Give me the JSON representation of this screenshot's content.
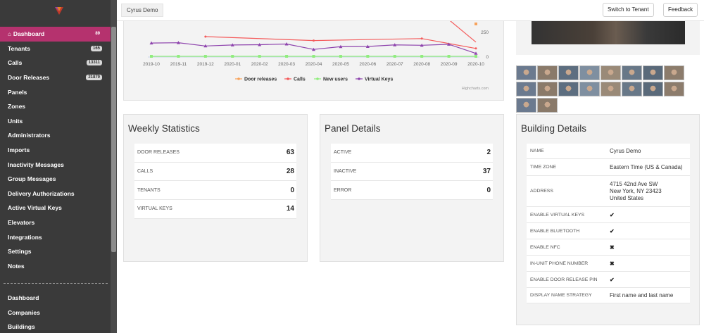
{
  "sidebar": {
    "items": [
      {
        "label": "Dashboard",
        "badge": "89",
        "active": true
      },
      {
        "label": "Tenants",
        "badge": "165"
      },
      {
        "label": "Calls",
        "badge": "13311"
      },
      {
        "label": "Door Releases",
        "badge": "21879"
      },
      {
        "label": "Panels",
        "badge": ""
      },
      {
        "label": "Zones",
        "badge": ""
      },
      {
        "label": "Units",
        "badge": ""
      },
      {
        "label": "Administrators",
        "badge": ""
      },
      {
        "label": "Imports",
        "badge": ""
      },
      {
        "label": "Inactivity Messages",
        "badge": ""
      },
      {
        "label": "Group Messages",
        "badge": ""
      },
      {
        "label": "Delivery Authorizations",
        "badge": ""
      },
      {
        "label": "Active Virtual Keys",
        "badge": ""
      },
      {
        "label": "Elevators",
        "badge": ""
      },
      {
        "label": "Integrations",
        "badge": ""
      },
      {
        "label": "Settings",
        "badge": ""
      },
      {
        "label": "Notes",
        "badge": ""
      }
    ],
    "items2": [
      {
        "label": "Dashboard"
      },
      {
        "label": "Companies"
      },
      {
        "label": "Buildings"
      }
    ]
  },
  "topbar": {
    "tenant": "Cyrus Demo",
    "switch_label": "Switch to Tenant",
    "feedback_label": "Feedback"
  },
  "chart_data": {
    "type": "line",
    "x": [
      "2019-10",
      "2019-11",
      "2019-12",
      "2020-01",
      "2020-02",
      "2020-03",
      "2020-04",
      "2020-05",
      "2020-06",
      "2020-07",
      "2020-08",
      "2020-09",
      "2020-10"
    ],
    "y_ticks": [
      "250",
      "0"
    ],
    "series": [
      {
        "name": "Door releases",
        "color": "#f7a35c",
        "values": [
          null,
          null,
          null,
          null,
          null,
          null,
          null,
          null,
          null,
          null,
          null,
          null,
          null
        ]
      },
      {
        "name": "Calls",
        "color": "#f45b5b",
        "values": [
          null,
          null,
          200,
          null,
          null,
          null,
          160,
          null,
          null,
          null,
          180,
          null,
          80
        ]
      },
      {
        "name": "New users",
        "color": "#90ed7d",
        "values": [
          0,
          0,
          0,
          0,
          0,
          0,
          0,
          0,
          0,
          0,
          0,
          0,
          0
        ]
      },
      {
        "name": "Virtual Keys",
        "color": "#8e44ad",
        "values": [
          135,
          138,
          105,
          115,
          118,
          125,
          70,
          98,
          100,
          116,
          112,
          122,
          30
        ]
      }
    ],
    "credit": "Highcharts.com"
  },
  "weekly": {
    "title": "Weekly Statistics",
    "rows": [
      {
        "label": "DOOR RELEASES",
        "value": "63"
      },
      {
        "label": "CALLS",
        "value": "28"
      },
      {
        "label": "TENANTS",
        "value": "0"
      },
      {
        "label": "VIRTUAL KEYS",
        "value": "14"
      }
    ]
  },
  "panel_details": {
    "title": "Panel Details",
    "rows": [
      {
        "label": "ACTIVE",
        "value": "2"
      },
      {
        "label": "INACTIVE",
        "value": "37"
      },
      {
        "label": "ERROR",
        "value": "0"
      }
    ]
  },
  "building": {
    "title": "Building Details",
    "rows": [
      {
        "label": "NAME",
        "value": "Cyrus Demo"
      },
      {
        "label": "TIME ZONE",
        "value": "Eastern Time (US & Canada)"
      },
      {
        "label": "ADDRESS",
        "value": "4715 42nd Ave SW",
        "value2": "New York, NY 23423",
        "value3": "United States"
      },
      {
        "label": "ENABLE VIRTUAL KEYS",
        "icon": "check-icon",
        "glyph": "✔"
      },
      {
        "label": "ENABLE BLUETOOTH",
        "icon": "check-icon",
        "glyph": "✔"
      },
      {
        "label": "ENABLE NFC",
        "icon": "cross-icon",
        "glyph": "✖"
      },
      {
        "label": "IN-UNIT PHONE NUMBER",
        "icon": "cross-icon",
        "glyph": "✖"
      },
      {
        "label": "ENABLE DOOR RELEASE PIN",
        "icon": "check-icon",
        "glyph": "✔"
      },
      {
        "label": "DISPLAY NAME STRATEGY",
        "value": "First name and last name"
      }
    ]
  }
}
